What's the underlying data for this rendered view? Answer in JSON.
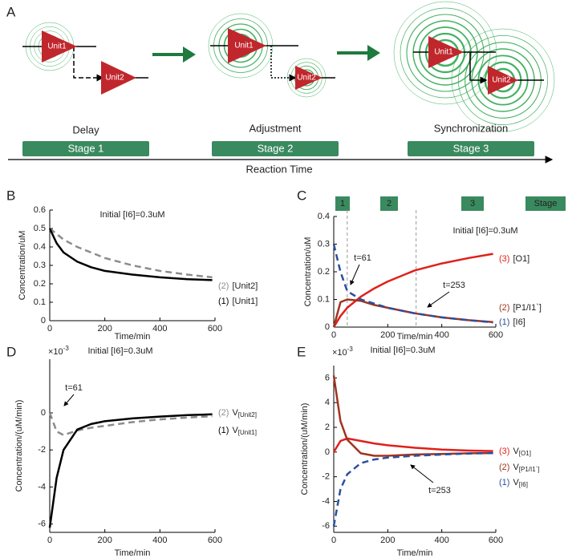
{
  "diagram": {
    "panel": "A",
    "stages": [
      {
        "caption": "Delay",
        "label": "Stage 1",
        "units": [
          "Unit1",
          "Unit2"
        ]
      },
      {
        "caption": "Adjustment",
        "label": "Stage 2",
        "units": [
          "Unit1",
          "Unit2"
        ]
      },
      {
        "caption": "Synchronization",
        "label": "Stage 3",
        "units": [
          "Unit1",
          "Unit2"
        ]
      }
    ],
    "axis_label": "Reaction Time"
  },
  "chart_data": [
    {
      "type": "line",
      "panel": "B",
      "title": "Initial [I6]=0.3uM",
      "xlabel": "Time/min",
      "ylabel": "Concentration/uM",
      "x": [
        0,
        25,
        50,
        100,
        150,
        200,
        300,
        400,
        500,
        590
      ],
      "xlim": [
        0,
        600
      ],
      "xticks": [
        0,
        200,
        400,
        600
      ],
      "ylim": [
        0,
        0.6
      ],
      "yticks": [
        0,
        0.1,
        0.2,
        0.3,
        0.4,
        0.5,
        0.6
      ],
      "series": [
        {
          "marker": "(2)",
          "name": "[Unit2]",
          "color": "#8c8c8c",
          "dashed": true,
          "values": [
            0.5,
            0.47,
            0.44,
            0.4,
            0.37,
            0.34,
            0.3,
            0.27,
            0.25,
            0.235
          ]
        },
        {
          "marker": "(1)",
          "name": "[Unit1]",
          "color": "#000000",
          "dashed": false,
          "values": [
            0.5,
            0.42,
            0.37,
            0.32,
            0.29,
            0.27,
            0.25,
            0.235,
            0.225,
            0.22
          ]
        }
      ]
    },
    {
      "type": "line",
      "panel": "C",
      "title": "Initial [I6]=0.3uM",
      "xlabel": "Time/min",
      "ylabel": "Concentration/uM",
      "x": [
        0,
        25,
        50,
        100,
        150,
        200,
        300,
        400,
        500,
        590
      ],
      "xlim": [
        0,
        600
      ],
      "xticks": [
        0,
        200,
        400,
        600
      ],
      "ylim": [
        0,
        0.4
      ],
      "yticks": [
        0,
        0.1,
        0.2,
        0.3,
        0.4
      ],
      "stages": [
        "1",
        "2",
        "3",
        "Stage"
      ],
      "stage_color": "#3a8a5f",
      "vlines": [
        50,
        305
      ],
      "annotations": [
        "t=61",
        "t=253"
      ],
      "series": [
        {
          "marker": "(3)",
          "name": "[O1]",
          "color": "#e0201b",
          "dashed": false,
          "values": [
            0,
            0.04,
            0.07,
            0.11,
            0.14,
            0.165,
            0.205,
            0.23,
            0.25,
            0.265
          ]
        },
        {
          "marker": "(2)",
          "name": "[P1/I1`]",
          "color": "#a0341f",
          "dashed": false,
          "values": [
            0,
            0.09,
            0.1,
            0.095,
            0.08,
            0.07,
            0.05,
            0.035,
            0.025,
            0.018
          ]
        },
        {
          "marker": "(1)",
          "name": "[I6]",
          "color": "#2a4fa0",
          "dashed": true,
          "values": [
            0.3,
            0.2,
            0.13,
            0.1,
            0.085,
            0.07,
            0.05,
            0.035,
            0.025,
            0.017
          ]
        }
      ]
    },
    {
      "type": "line",
      "panel": "D",
      "title": "Initial [I6]=0.3uM",
      "xlabel": "Time/min",
      "ylabel": "Concentration/(uM/min)",
      "scale_label": "×10",
      "scale_exp": "-3",
      "x": [
        0,
        25,
        50,
        100,
        150,
        200,
        300,
        400,
        500,
        590
      ],
      "xlim": [
        0,
        600
      ],
      "xticks": [
        0,
        200,
        400,
        600
      ],
      "ylim": [
        -6.45,
        2.9
      ],
      "yticks": [
        -6,
        -4,
        -2,
        0
      ],
      "annotations": [
        "t=61"
      ],
      "series": [
        {
          "marker": "(2)",
          "name": "V",
          "subscript": "[Unit2]",
          "color": "#8c8c8c",
          "dashed": true,
          "values": [
            0,
            -1.0,
            -1.2,
            -0.95,
            -0.8,
            -0.7,
            -0.5,
            -0.35,
            -0.25,
            -0.18
          ]
        },
        {
          "marker": "(1)",
          "name": "V",
          "subscript": "[Unit1]",
          "color": "#000000",
          "dashed": false,
          "values": [
            -6.2,
            -3.5,
            -2,
            -0.9,
            -0.6,
            -0.45,
            -0.3,
            -0.2,
            -0.12,
            -0.08
          ]
        }
      ]
    },
    {
      "type": "line",
      "panel": "E",
      "title": "Initial [I6]=0.3uM",
      "xlabel": "Time/min",
      "ylabel": "Concentration/(uM/min)",
      "scale_label": "×10",
      "scale_exp": "-3",
      "x": [
        0,
        25,
        50,
        100,
        150,
        200,
        300,
        400,
        500,
        590
      ],
      "xlim": [
        0,
        600
      ],
      "xticks": [
        0,
        200,
        400,
        600
      ],
      "ylim": [
        -6.5,
        7
      ],
      "yticks": [
        -6,
        -4,
        -2,
        0,
        2,
        4,
        6
      ],
      "annotations": [
        "t=253"
      ],
      "series": [
        {
          "marker": "(3)",
          "name": "V",
          "subscript": "[O1]",
          "color": "#e0201b",
          "dashed": false,
          "values": [
            0,
            0.9,
            1.1,
            0.9,
            0.7,
            0.55,
            0.35,
            0.2,
            0.12,
            0.08
          ]
        },
        {
          "marker": "(2)",
          "name": "V",
          "subscript": "[P1/I1`]",
          "color": "#a0341f",
          "dashed": false,
          "values": [
            6.2,
            2.5,
            1,
            -0.1,
            -0.3,
            -0.3,
            -0.2,
            -0.15,
            -0.1,
            -0.08
          ]
        },
        {
          "marker": "(1)",
          "name": "V",
          "subscript": "[I6]",
          "color": "#2a4fa0",
          "dashed": true,
          "values": [
            -6,
            -3,
            -1.8,
            -0.9,
            -0.6,
            -0.45,
            -0.3,
            -0.2,
            -0.12,
            -0.08
          ]
        }
      ]
    }
  ]
}
